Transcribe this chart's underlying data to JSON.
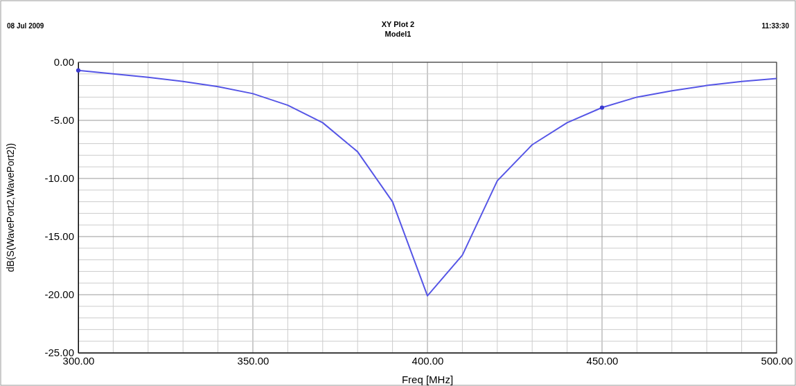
{
  "chart_data": {
    "type": "line",
    "title": "XY Plot 2",
    "subtitle": "Model1",
    "xlabel": "Freq [MHz]",
    "ylabel": "dB(S(WavePort2,WavePort2))",
    "annotations": [
      "08 Jul 2009",
      "11:33:30"
    ],
    "x": [
      300,
      310,
      320,
      330,
      340,
      350,
      360,
      370,
      380,
      390,
      400,
      410,
      420,
      430,
      440,
      450,
      460,
      470,
      480,
      490,
      500
    ],
    "series": [
      {
        "color": "#5555e6",
        "values": [
          -0.7,
          -1.0,
          -1.3,
          -1.65,
          -2.1,
          -2.7,
          -3.7,
          -5.2,
          -7.7,
          -12.0,
          -20.1,
          -16.6,
          -10.2,
          -7.1,
          -5.2,
          -3.9,
          -3.0,
          -2.45,
          -2.0,
          -1.65,
          -1.4
        ]
      },
      {
        "type": "scatter",
        "marker": "circle",
        "color": "#3a3ad0",
        "x": [
          300,
          450
        ],
        "values": [
          -0.7,
          -3.9
        ]
      }
    ],
    "xlim": [
      300,
      500
    ],
    "ylim": [
      -25,
      0
    ],
    "xticks": [
      {
        "value": 300,
        "label": "300.00"
      },
      {
        "value": 310,
        "label": null
      },
      {
        "value": 320,
        "label": null
      },
      {
        "value": 330,
        "label": null
      },
      {
        "value": 340,
        "label": null
      },
      {
        "value": 350,
        "label": "350.00"
      },
      {
        "value": 360,
        "label": null
      },
      {
        "value": 370,
        "label": null
      },
      {
        "value": 380,
        "label": null
      },
      {
        "value": 390,
        "label": null
      },
      {
        "value": 400,
        "label": "400.00"
      },
      {
        "value": 410,
        "label": null
      },
      {
        "value": 420,
        "label": null
      },
      {
        "value": 430,
        "label": null
      },
      {
        "value": 440,
        "label": null
      },
      {
        "value": 450,
        "label": "450.00"
      },
      {
        "value": 460,
        "label": null
      },
      {
        "value": 470,
        "label": null
      },
      {
        "value": 480,
        "label": null
      },
      {
        "value": 490,
        "label": null
      },
      {
        "value": 500,
        "label": "500.00"
      }
    ],
    "yticks": [
      {
        "value": -25,
        "label": "-25.00"
      },
      {
        "value": -24,
        "label": null
      },
      {
        "value": -23,
        "label": null
      },
      {
        "value": -22,
        "label": null
      },
      {
        "value": -21,
        "label": null
      },
      {
        "value": -20,
        "label": "-20.00"
      },
      {
        "value": -19,
        "label": null
      },
      {
        "value": -18,
        "label": null
      },
      {
        "value": -17,
        "label": null
      },
      {
        "value": -16,
        "label": null
      },
      {
        "value": -15,
        "label": "-15.00"
      },
      {
        "value": -14,
        "label": null
      },
      {
        "value": -13,
        "label": null
      },
      {
        "value": -12,
        "label": null
      },
      {
        "value": -11,
        "label": null
      },
      {
        "value": -10,
        "label": "-10.00"
      },
      {
        "value": -9,
        "label": null
      },
      {
        "value": -8,
        "label": null
      },
      {
        "value": -7,
        "label": null
      },
      {
        "value": -6,
        "label": null
      },
      {
        "value": -5,
        "label": "-5.00"
      },
      {
        "value": -4,
        "label": null
      },
      {
        "value": -3,
        "label": null
      },
      {
        "value": -2,
        "label": null
      },
      {
        "value": -1,
        "label": null
      },
      {
        "value": 0,
        "label": "0.00"
      }
    ],
    "grid": true,
    "marker": "none",
    "line_style": "solid"
  }
}
